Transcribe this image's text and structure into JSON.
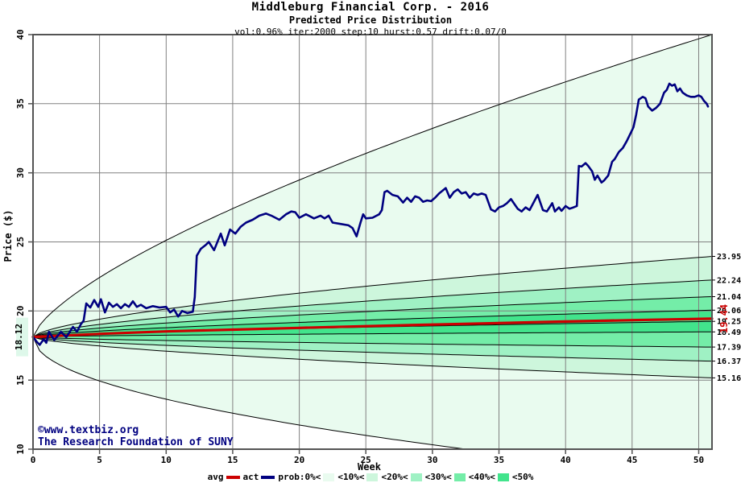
{
  "header": {
    "title": "Middleburg Financial Corp. - 2016",
    "subtitle": "Predicted Price Distribution",
    "params": "vol:0.96% iter:2000 step:10 hurst:0.57 drift:0.07/0"
  },
  "watermark": {
    "line1": "©www.textbiz.org",
    "line2": "The Research Foundation of SUNY"
  },
  "colors": {
    "grid": "#808080",
    "axis": "#545454",
    "boundary": "#000000",
    "background": "#ffffff",
    "avg": "#cc0000",
    "act": "#000080"
  },
  "chart_data": {
    "type": "line",
    "title": "Middleburg Financial Corp. - 2016",
    "subtitle": "Predicted Price Distribution",
    "xlabel": "Week",
    "ylabel": "Price ($)",
    "xlim": [
      0,
      51
    ],
    "ylim": [
      10,
      40
    ],
    "x_ticks": [
      0,
      5,
      10,
      15,
      20,
      25,
      30,
      35,
      40,
      45,
      50
    ],
    "y_ticks": [
      10,
      15,
      20,
      25,
      30,
      35,
      40
    ],
    "grid": true,
    "legend_position": "bottom",
    "start_price": 18.12,
    "start_price_label": "18.12",
    "avg_end_value": 19.44,
    "avg_end_label": "19.44",
    "curve_exponent": 0.65,
    "envelope": {
      "top_end": 40,
      "top_exponent": 0.7,
      "bottom_floor_week": 32.5
    },
    "band_boundary_ends": [
      23.95,
      22.24,
      21.04,
      20.06,
      19.25,
      18.49,
      17.39,
      16.37,
      15.16
    ],
    "right_axis_labels": [
      "23.95",
      "22.24",
      "21.04",
      "20.06",
      "19.25",
      "18.49",
      "17.39",
      "16.37",
      "15.16"
    ],
    "bands": [
      {
        "name": "0-10",
        "upper_end": "envelope",
        "lower_end": "envelope",
        "color": "#e9fbef"
      },
      {
        "name": "10-20",
        "upper_end": 23.95,
        "lower_end": 15.16,
        "color": "#cdf6dc"
      },
      {
        "name": "20-30",
        "upper_end": 22.24,
        "lower_end": 16.37,
        "color": "#9ff1c4"
      },
      {
        "name": "30-40",
        "upper_end": 21.04,
        "lower_end": 17.39,
        "color": "#74eda8"
      },
      {
        "name": "40-50",
        "upper_end": 20.06,
        "lower_end": 18.49,
        "color": "#42e48c"
      }
    ],
    "series": [
      {
        "name": "avg",
        "color": "#cc0000",
        "points": [
          [
            0,
            18.12
          ],
          [
            5,
            18.35
          ],
          [
            10,
            18.52
          ],
          [
            15,
            18.65
          ],
          [
            20,
            18.78
          ],
          [
            25,
            18.9
          ],
          [
            30,
            19.02
          ],
          [
            35,
            19.13
          ],
          [
            40,
            19.24
          ],
          [
            45,
            19.34
          ],
          [
            51,
            19.44
          ]
        ]
      },
      {
        "name": "act",
        "color": "#000080",
        "points": [
          [
            0,
            18.12
          ],
          [
            0.3,
            17.75
          ],
          [
            0.5,
            17.55
          ],
          [
            0.8,
            17.95
          ],
          [
            1,
            17.7
          ],
          [
            1.2,
            18.5
          ],
          [
            1.6,
            17.9
          ],
          [
            2.1,
            18.5
          ],
          [
            2.5,
            18.1
          ],
          [
            3,
            18.85
          ],
          [
            3.3,
            18.5
          ],
          [
            3.6,
            19.05
          ],
          [
            3.8,
            19.3
          ],
          [
            4,
            20.55
          ],
          [
            4.3,
            20.25
          ],
          [
            4.6,
            20.8
          ],
          [
            4.9,
            20.3
          ],
          [
            5.1,
            20.85
          ],
          [
            5.4,
            19.9
          ],
          [
            5.7,
            20.6
          ],
          [
            6,
            20.3
          ],
          [
            6.3,
            20.5
          ],
          [
            6.6,
            20.2
          ],
          [
            6.9,
            20.5
          ],
          [
            7.2,
            20.3
          ],
          [
            7.5,
            20.7
          ],
          [
            7.8,
            20.3
          ],
          [
            8.1,
            20.45
          ],
          [
            8.5,
            20.2
          ],
          [
            9,
            20.35
          ],
          [
            9.5,
            20.25
          ],
          [
            10,
            20.3
          ],
          [
            10.3,
            19.9
          ],
          [
            10.6,
            20.1
          ],
          [
            10.9,
            19.6
          ],
          [
            11.2,
            20
          ],
          [
            11.6,
            19.85
          ],
          [
            12,
            19.95
          ],
          [
            12.15,
            21
          ],
          [
            12.3,
            24
          ],
          [
            12.6,
            24.5
          ],
          [
            13,
            24.8
          ],
          [
            13.2,
            25
          ],
          [
            13.6,
            24.4
          ],
          [
            14.1,
            25.6
          ],
          [
            14.4,
            24.75
          ],
          [
            14.8,
            25.9
          ],
          [
            15.2,
            25.6
          ],
          [
            15.6,
            26.1
          ],
          [
            16,
            26.4
          ],
          [
            16.5,
            26.6
          ],
          [
            17,
            26.9
          ],
          [
            17.5,
            27.05
          ],
          [
            17.9,
            26.9
          ],
          [
            18.5,
            26.6
          ],
          [
            19,
            27
          ],
          [
            19.4,
            27.2
          ],
          [
            19.7,
            27.15
          ],
          [
            20,
            26.75
          ],
          [
            20.5,
            27
          ],
          [
            21.1,
            26.7
          ],
          [
            21.6,
            26.9
          ],
          [
            21.9,
            26.7
          ],
          [
            22.2,
            26.9
          ],
          [
            22.5,
            26.4
          ],
          [
            23.1,
            26.3
          ],
          [
            23.7,
            26.2
          ],
          [
            24,
            26
          ],
          [
            24.3,
            25.4
          ],
          [
            24.6,
            26.4
          ],
          [
            24.8,
            27
          ],
          [
            25,
            26.7
          ],
          [
            25.5,
            26.75
          ],
          [
            26,
            27
          ],
          [
            26.2,
            27.3
          ],
          [
            26.4,
            28.6
          ],
          [
            26.6,
            28.7
          ],
          [
            27,
            28.4
          ],
          [
            27.4,
            28.3
          ],
          [
            27.8,
            27.85
          ],
          [
            28.1,
            28.2
          ],
          [
            28.4,
            27.9
          ],
          [
            28.7,
            28.3
          ],
          [
            29,
            28.2
          ],
          [
            29.3,
            27.9
          ],
          [
            29.6,
            28
          ],
          [
            29.9,
            27.95
          ],
          [
            30.2,
            28.2
          ],
          [
            30.5,
            28.5
          ],
          [
            31,
            28.9
          ],
          [
            31.3,
            28.2
          ],
          [
            31.6,
            28.6
          ],
          [
            31.9,
            28.8
          ],
          [
            32.2,
            28.5
          ],
          [
            32.5,
            28.6
          ],
          [
            32.8,
            28.2
          ],
          [
            33.1,
            28.5
          ],
          [
            33.4,
            28.4
          ],
          [
            33.7,
            28.5
          ],
          [
            34,
            28.4
          ],
          [
            34.4,
            27.35
          ],
          [
            34.7,
            27.2
          ],
          [
            35,
            27.5
          ],
          [
            35.3,
            27.6
          ],
          [
            35.6,
            27.8
          ],
          [
            35.9,
            28.1
          ],
          [
            36.4,
            27.4
          ],
          [
            36.7,
            27.2
          ],
          [
            37,
            27.5
          ],
          [
            37.3,
            27.3
          ],
          [
            37.9,
            28.4
          ],
          [
            38.3,
            27.3
          ],
          [
            38.6,
            27.2
          ],
          [
            39,
            27.8
          ],
          [
            39.2,
            27.2
          ],
          [
            39.5,
            27.5
          ],
          [
            39.7,
            27.25
          ],
          [
            40,
            27.6
          ],
          [
            40.3,
            27.4
          ],
          [
            40.6,
            27.5
          ],
          [
            40.85,
            27.6
          ],
          [
            41,
            30.5
          ],
          [
            41.2,
            30.45
          ],
          [
            41.5,
            30.7
          ],
          [
            41.7,
            30.5
          ],
          [
            42,
            30.1
          ],
          [
            42.2,
            29.5
          ],
          [
            42.4,
            29.8
          ],
          [
            42.7,
            29.3
          ],
          [
            42.9,
            29.45
          ],
          [
            43.2,
            29.8
          ],
          [
            43.5,
            30.8
          ],
          [
            43.7,
            31
          ],
          [
            44,
            31.5
          ],
          [
            44.3,
            31.8
          ],
          [
            44.6,
            32.3
          ],
          [
            44.9,
            32.9
          ],
          [
            45.1,
            33.3
          ],
          [
            45.3,
            34.2
          ],
          [
            45.5,
            35.3
          ],
          [
            45.8,
            35.5
          ],
          [
            46,
            35.4
          ],
          [
            46.2,
            34.8
          ],
          [
            46.5,
            34.5
          ],
          [
            46.8,
            34.7
          ],
          [
            47.1,
            35
          ],
          [
            47.4,
            35.8
          ],
          [
            47.6,
            36
          ],
          [
            47.8,
            36.45
          ],
          [
            48,
            36.3
          ],
          [
            48.2,
            36.4
          ],
          [
            48.4,
            35.9
          ],
          [
            48.6,
            36.1
          ],
          [
            48.8,
            35.8
          ],
          [
            49.1,
            35.6
          ],
          [
            49.4,
            35.5
          ],
          [
            49.7,
            35.5
          ],
          [
            50,
            35.6
          ],
          [
            50.2,
            35.5
          ],
          [
            50.4,
            35.2
          ],
          [
            50.6,
            35
          ],
          [
            50.7,
            34.8
          ]
        ]
      }
    ]
  },
  "legend": {
    "items": [
      {
        "label": "avg",
        "swatch": "line",
        "color": "#cc0000"
      },
      {
        "label": "act",
        "swatch": "line",
        "color": "#000080"
      },
      {
        "label": "prob:0%<",
        "swatch": "rect",
        "color": "#e9fbef"
      },
      {
        "label": "<10%<",
        "swatch": "rect",
        "color": "#cdf6dc"
      },
      {
        "label": "<20%<",
        "swatch": "rect",
        "color": "#9ff1c4"
      },
      {
        "label": "<30%<",
        "swatch": "rect",
        "color": "#74eda8"
      },
      {
        "label": "<40%<",
        "swatch": "rect",
        "color": "#42e48c"
      },
      {
        "label": "<50%",
        "swatch": "none",
        "color": ""
      }
    ]
  }
}
